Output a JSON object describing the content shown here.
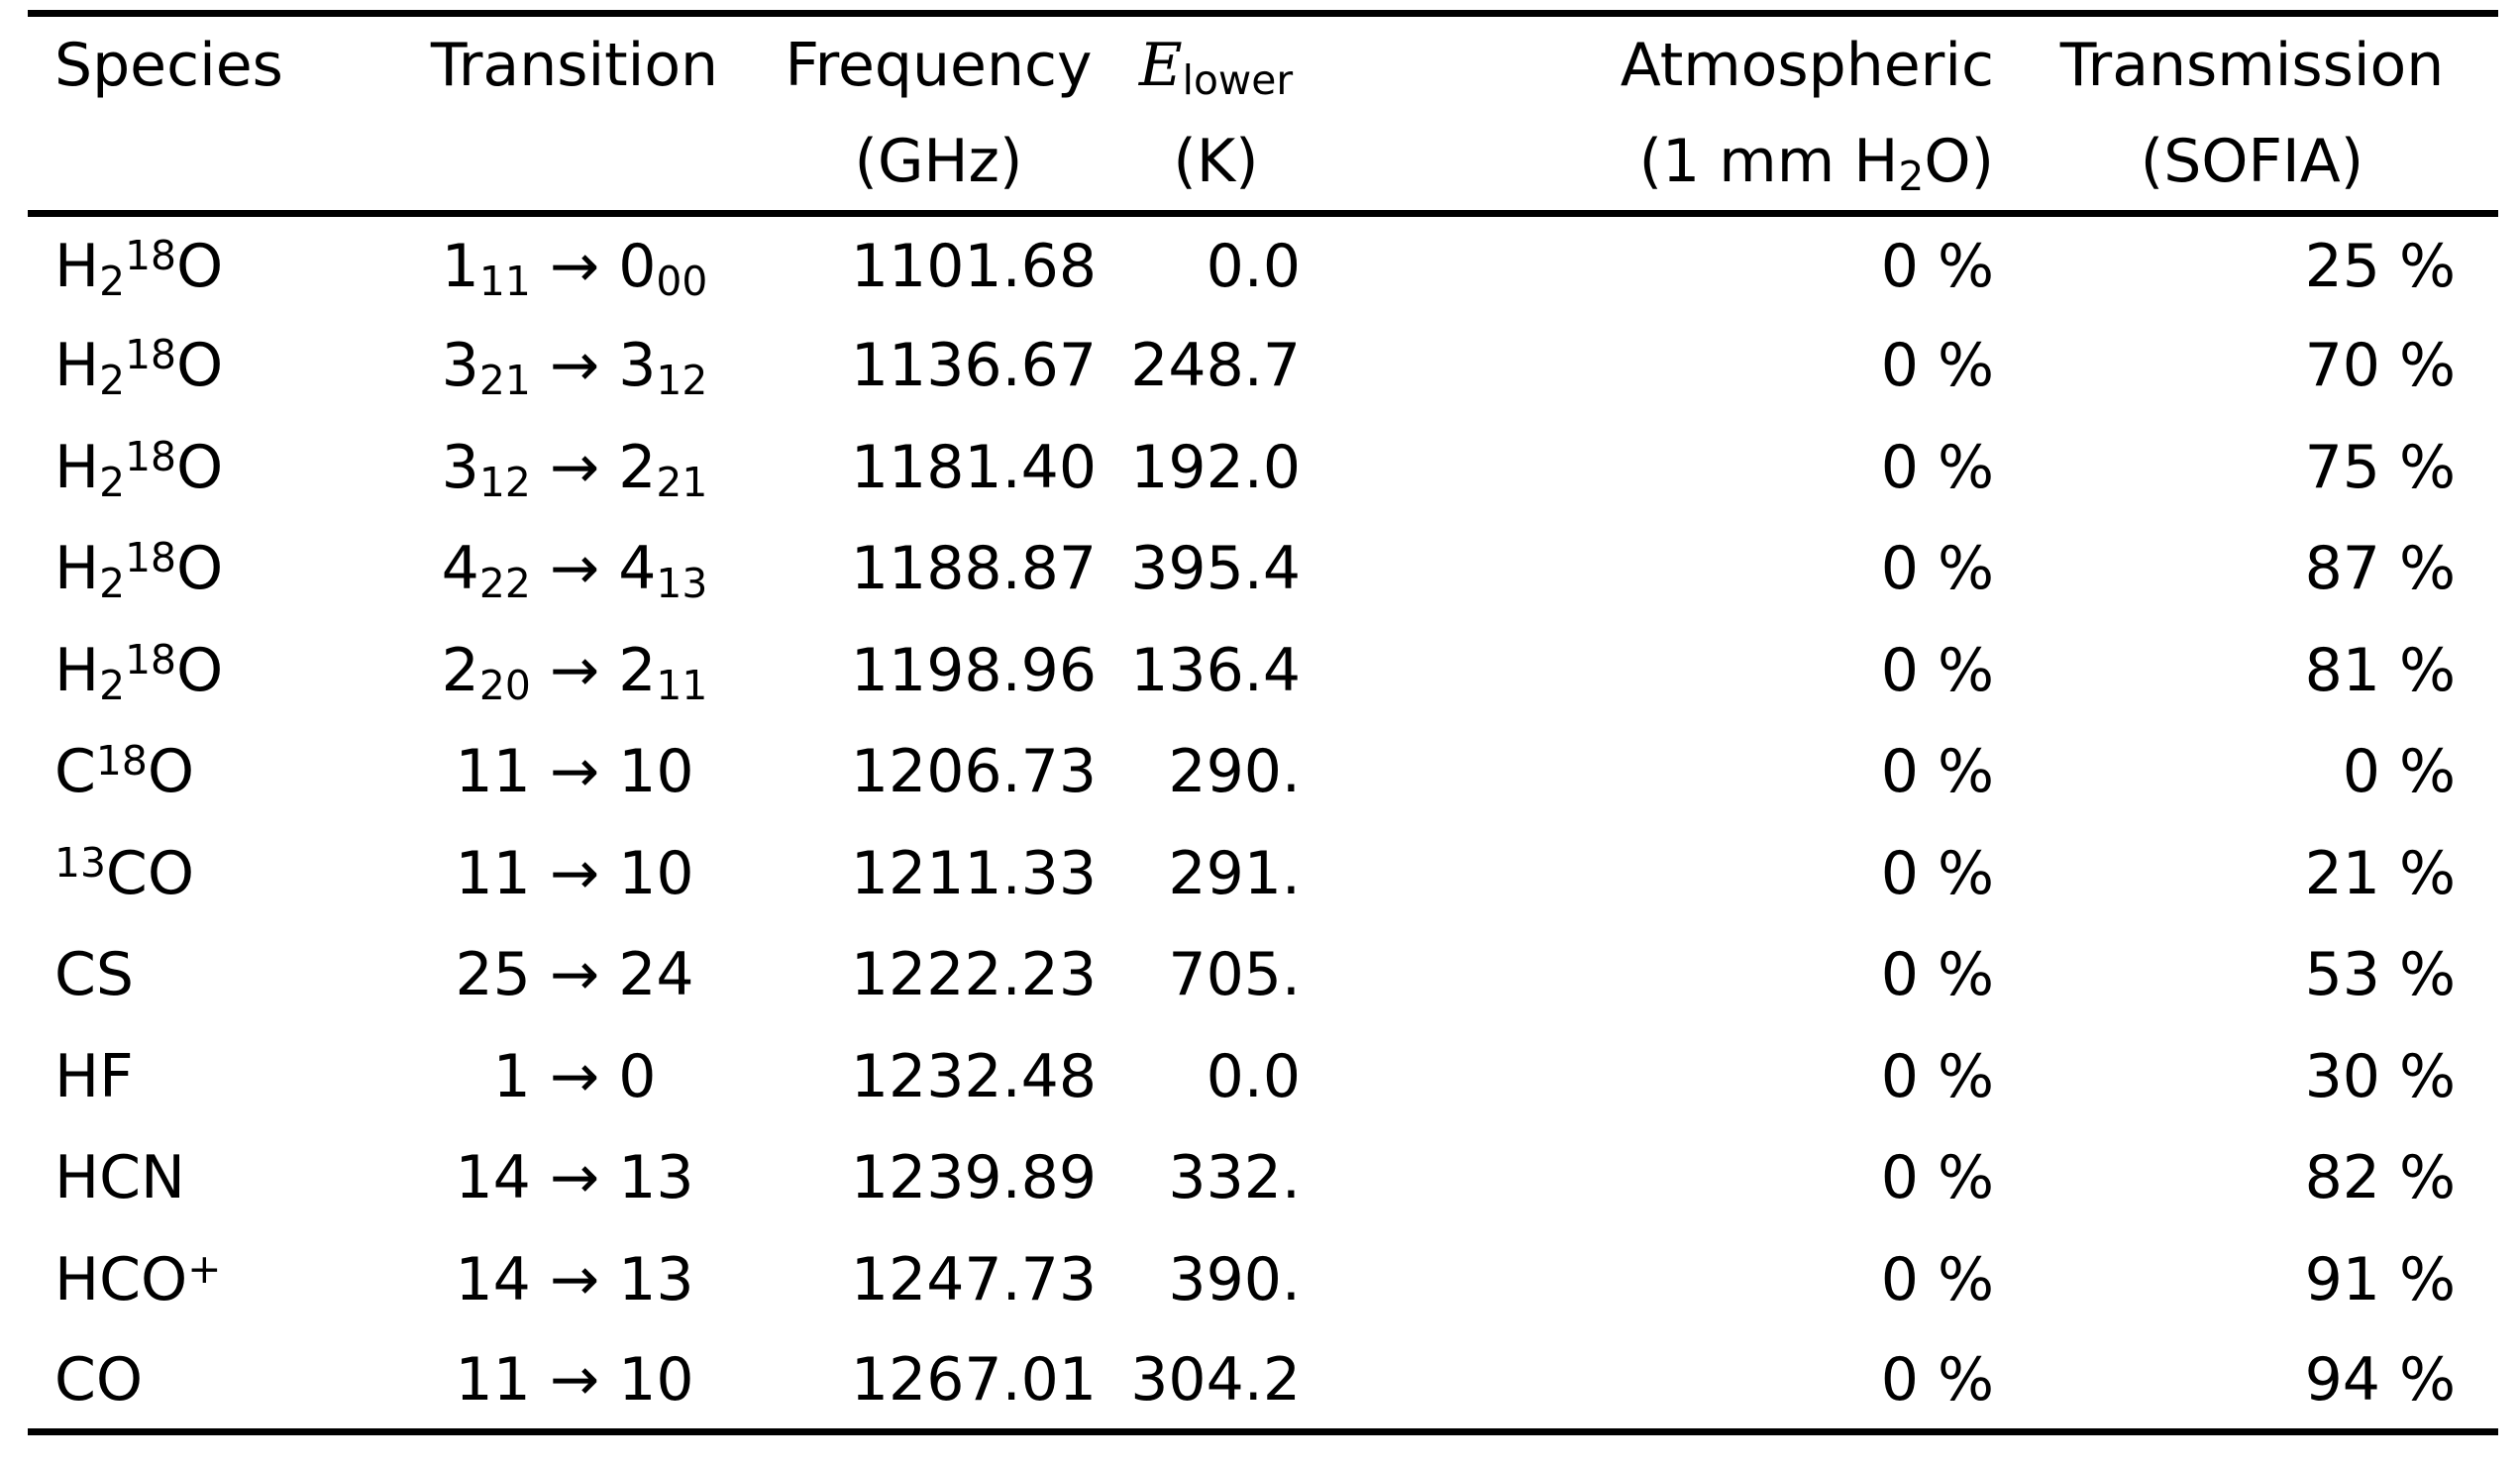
{
  "page": {
    "background": "#ffffff",
    "text_color": "#000000",
    "rule_color": "#000000"
  },
  "table": {
    "columns": [
      {
        "id": "species",
        "align_header": "al",
        "align_data": "al",
        "header1": [
          [
            "t",
            "Species"
          ]
        ],
        "header2": []
      },
      {
        "id": "transition",
        "align_header": "ac",
        "align_data": "ac",
        "header1": [
          [
            "t",
            "Transition"
          ]
        ],
        "header2": []
      },
      {
        "id": "frequency",
        "align_header": "ac",
        "align_data": "ar",
        "header1": [
          [
            "t",
            "Frequency"
          ]
        ],
        "header2": [
          [
            "t",
            "(GHz)"
          ]
        ]
      },
      {
        "id": "e_lower",
        "align_header": "ac",
        "align_data": "ar",
        "header1": [
          [
            "mi",
            "E"
          ],
          [
            "sub",
            "lower"
          ]
        ],
        "header2": [
          [
            "t",
            "(K)"
          ]
        ]
      },
      {
        "id": "atm",
        "align_header": "ar",
        "align_data": "ar",
        "header1": [
          [
            "t",
            "Atmospheric"
          ]
        ],
        "header2": [
          [
            "t",
            "(1 mm H"
          ],
          [
            "sub",
            "2"
          ],
          [
            "t",
            "O)"
          ]
        ]
      },
      {
        "id": "sofia",
        "align_header": "ac",
        "align_data": "ar",
        "header1": [
          [
            "t",
            "Transmission"
          ]
        ],
        "header2": [
          [
            "t",
            "(SOFIA)"
          ]
        ]
      }
    ],
    "rows": [
      {
        "species": [
          [
            "t",
            "H"
          ],
          [
            "sub",
            "2"
          ],
          [
            "sup",
            "18"
          ],
          [
            "t",
            "O"
          ]
        ],
        "transition": [
          [
            "t",
            "1"
          ],
          [
            "sub",
            "11"
          ],
          [
            "t",
            " → "
          ],
          [
            "t",
            "0"
          ],
          [
            "sub",
            "00"
          ]
        ],
        "frequency": "1101.68",
        "e_lower": "0.0",
        "atm": "0 %",
        "sofia": "25 %"
      },
      {
        "species": [
          [
            "t",
            "H"
          ],
          [
            "sub",
            "2"
          ],
          [
            "sup",
            "18"
          ],
          [
            "t",
            "O"
          ]
        ],
        "transition": [
          [
            "t",
            "3"
          ],
          [
            "sub",
            "21"
          ],
          [
            "t",
            " → "
          ],
          [
            "t",
            "3"
          ],
          [
            "sub",
            "12"
          ]
        ],
        "frequency": "1136.67",
        "e_lower": "248.7",
        "atm": "0 %",
        "sofia": "70 %"
      },
      {
        "species": [
          [
            "t",
            "H"
          ],
          [
            "sub",
            "2"
          ],
          [
            "sup",
            "18"
          ],
          [
            "t",
            "O"
          ]
        ],
        "transition": [
          [
            "t",
            "3"
          ],
          [
            "sub",
            "12"
          ],
          [
            "t",
            " → "
          ],
          [
            "t",
            "2"
          ],
          [
            "sub",
            "21"
          ]
        ],
        "frequency": "1181.40",
        "e_lower": "192.0",
        "atm": "0 %",
        "sofia": "75 %"
      },
      {
        "species": [
          [
            "t",
            "H"
          ],
          [
            "sub",
            "2"
          ],
          [
            "sup",
            "18"
          ],
          [
            "t",
            "O"
          ]
        ],
        "transition": [
          [
            "t",
            "4"
          ],
          [
            "sub",
            "22"
          ],
          [
            "t",
            " → "
          ],
          [
            "t",
            "4"
          ],
          [
            "sub",
            "13"
          ]
        ],
        "frequency": "1188.87",
        "e_lower": "395.4",
        "atm": "0 %",
        "sofia": "87 %"
      },
      {
        "species": [
          [
            "t",
            "H"
          ],
          [
            "sub",
            "2"
          ],
          [
            "sup",
            "18"
          ],
          [
            "t",
            "O"
          ]
        ],
        "transition": [
          [
            "t",
            "2"
          ],
          [
            "sub",
            "20"
          ],
          [
            "t",
            " → "
          ],
          [
            "t",
            "2"
          ],
          [
            "sub",
            "11"
          ]
        ],
        "frequency": "1198.96",
        "e_lower": "136.4",
        "atm": "0 %",
        "sofia": "81 %"
      },
      {
        "species": [
          [
            "t",
            "C"
          ],
          [
            "sup",
            "18"
          ],
          [
            "t",
            "O"
          ]
        ],
        "transition": [
          [
            "t",
            "11 → 10"
          ]
        ],
        "frequency": "1206.73",
        "e_lower": "290.",
        "atm": "0 %",
        "sofia": "0 %"
      },
      {
        "species": [
          [
            "sup",
            "13"
          ],
          [
            "t",
            "CO"
          ]
        ],
        "transition": [
          [
            "t",
            "11 → 10"
          ]
        ],
        "frequency": "1211.33",
        "e_lower": "291.",
        "atm": "0 %",
        "sofia": "21 %"
      },
      {
        "species": [
          [
            "t",
            "CS"
          ]
        ],
        "transition": [
          [
            "t",
            "25 → 24"
          ]
        ],
        "frequency": "1222.23",
        "e_lower": "705.",
        "atm": "0 %",
        "sofia": "53 %"
      },
      {
        "species": [
          [
            "t",
            "HF"
          ]
        ],
        "transition": [
          [
            "t",
            "1 → 0"
          ]
        ],
        "frequency": "1232.48",
        "e_lower": "0.0",
        "atm": "0 %",
        "sofia": "30 %"
      },
      {
        "species": [
          [
            "t",
            "HCN"
          ]
        ],
        "transition": [
          [
            "t",
            "14 → 13"
          ]
        ],
        "frequency": "1239.89",
        "e_lower": "332.",
        "atm": "0 %",
        "sofia": "82 %"
      },
      {
        "species": [
          [
            "t",
            "HCO"
          ],
          [
            "sup",
            "+"
          ]
        ],
        "transition": [
          [
            "t",
            "14 → 13"
          ]
        ],
        "frequency": "1247.73",
        "e_lower": "390.",
        "atm": "0 %",
        "sofia": "91 %"
      },
      {
        "species": [
          [
            "t",
            "CO"
          ]
        ],
        "transition": [
          [
            "t",
            "11 → 10"
          ]
        ],
        "frequency": "1267.01",
        "e_lower": "304.2",
        "atm": "0 %",
        "sofia": "94 %"
      }
    ]
  }
}
